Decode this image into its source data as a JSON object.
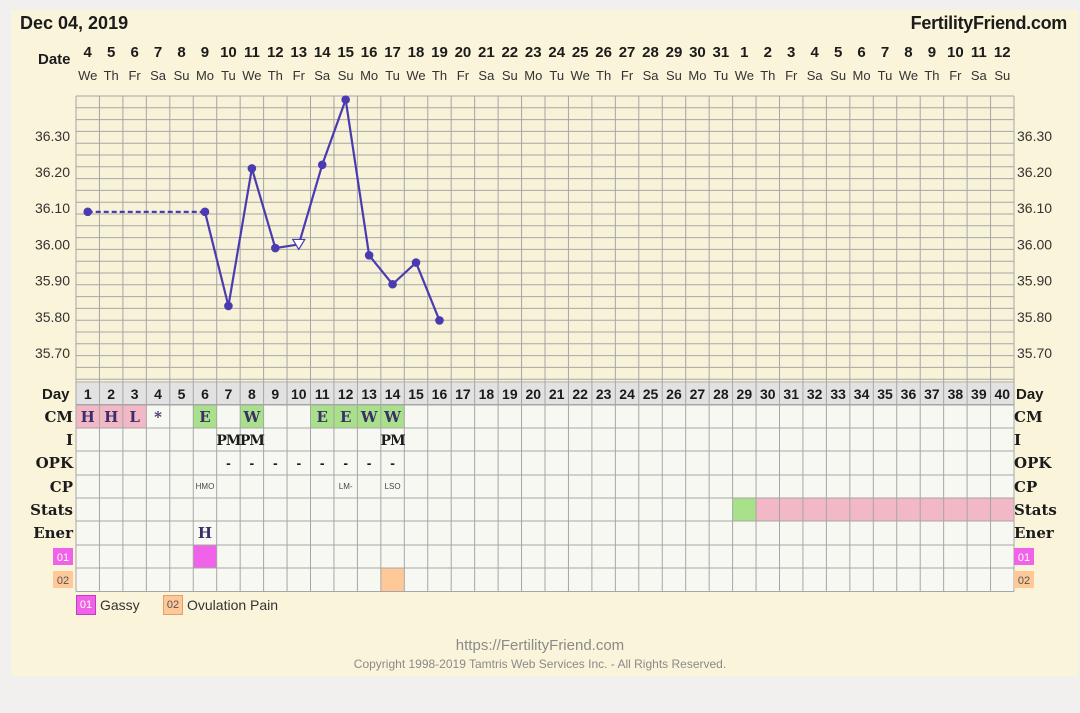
{
  "header": {
    "date": "Dec 04, 2019",
    "brand": "FertilityFriend.com"
  },
  "labels": {
    "date": "Date",
    "day": "Day",
    "rows": [
      "CM",
      "I",
      "OPK",
      "CP",
      "Stats",
      "Ener"
    ],
    "custom_rows": [
      "01",
      "02"
    ]
  },
  "chart_data": {
    "type": "line",
    "title": "",
    "ylabel": "",
    "ylim": [
      35.62,
      36.41
    ],
    "y_ticks": [
      "36.30",
      "36.20",
      "36.10",
      "36.00",
      "35.90",
      "35.80",
      "35.70"
    ],
    "dates": [
      "4",
      "5",
      "6",
      "7",
      "8",
      "9",
      "10",
      "11",
      "12",
      "13",
      "14",
      "15",
      "16",
      "17",
      "18",
      "19",
      "20",
      "21",
      "22",
      "23",
      "24",
      "25",
      "26",
      "27",
      "28",
      "29",
      "30",
      "31",
      "1",
      "2",
      "3",
      "4",
      "5",
      "6",
      "7",
      "8",
      "9",
      "10",
      "11",
      "12"
    ],
    "weekdays": [
      "We",
      "Th",
      "Fr",
      "Sa",
      "Su",
      "Mo",
      "Tu",
      "We",
      "Th",
      "Fr",
      "Sa",
      "Su",
      "Mo",
      "Tu",
      "We",
      "Th",
      "Fr",
      "Sa",
      "Su",
      "Mo",
      "Tu",
      "We",
      "Th",
      "Fr",
      "Sa",
      "Su",
      "Mo",
      "Tu",
      "We",
      "Th",
      "Fr",
      "Sa",
      "Su",
      "Mo",
      "Tu",
      "We",
      "Th",
      "Fr",
      "Sa",
      "Su"
    ],
    "cycle_days": [
      1,
      2,
      3,
      4,
      5,
      6,
      7,
      8,
      9,
      10,
      11,
      12,
      13,
      14,
      15,
      16,
      17,
      18,
      19,
      20,
      21,
      22,
      23,
      24,
      25,
      26,
      27,
      28,
      29,
      30,
      31,
      32,
      33,
      34,
      35,
      36,
      37,
      38,
      39,
      40
    ],
    "series": [
      {
        "points": [
          {
            "day": 1,
            "temp": 36.09
          },
          {
            "day": 6,
            "temp": 36.09
          },
          {
            "day": 7,
            "temp": 35.83
          },
          {
            "day": 8,
            "temp": 36.21
          },
          {
            "day": 9,
            "temp": 35.99
          },
          {
            "day": 10,
            "temp": 36.0,
            "open": true
          },
          {
            "day": 11,
            "temp": 36.22
          },
          {
            "day": 12,
            "temp": 36.4
          },
          {
            "day": 13,
            "temp": 35.97
          },
          {
            "day": 14,
            "temp": 35.89
          },
          {
            "day": 15,
            "temp": 35.95
          },
          {
            "day": 16,
            "temp": 35.79
          }
        ],
        "dashed_segments": [
          [
            1,
            6
          ]
        ],
        "color": "#4b3bb0"
      }
    ],
    "grid": true,
    "observations": {
      "CM": [
        {
          "day": 1,
          "text": "H",
          "color": "#f2b8c6"
        },
        {
          "day": 2,
          "text": "H",
          "color": "#f2b8c6"
        },
        {
          "day": 3,
          "text": "L",
          "color": "#f2b8c6"
        },
        {
          "day": 4,
          "text": "*",
          "color": ""
        },
        {
          "day": 6,
          "text": "E",
          "color": "#a9e08a"
        },
        {
          "day": 8,
          "text": "W",
          "color": "#a9e08a"
        },
        {
          "day": 11,
          "text": "E",
          "color": "#a9e08a"
        },
        {
          "day": 12,
          "text": "E",
          "color": "#a9e08a"
        },
        {
          "day": 13,
          "text": "W",
          "color": "#a9e08a"
        },
        {
          "day": 14,
          "text": "W",
          "color": "#a9e08a"
        }
      ],
      "I": [
        {
          "day": 7,
          "text": "PM"
        },
        {
          "day": 8,
          "text": "PM"
        },
        {
          "day": 14,
          "text": "PM"
        }
      ],
      "OPK": [
        {
          "day": 7,
          "text": "-"
        },
        {
          "day": 8,
          "text": "-"
        },
        {
          "day": 9,
          "text": "-"
        },
        {
          "day": 10,
          "text": "-"
        },
        {
          "day": 11,
          "text": "-"
        },
        {
          "day": 12,
          "text": "-"
        },
        {
          "day": 13,
          "text": "-"
        },
        {
          "day": 14,
          "text": "-"
        }
      ],
      "CP": [
        {
          "day": 6,
          "text": "HMO"
        },
        {
          "day": 12,
          "text": "LM-"
        },
        {
          "day": 14,
          "text": "LSO"
        }
      ],
      "Stats": [
        {
          "day": 29,
          "color": "#a9e08a"
        },
        {
          "from": 30,
          "to": 40,
          "color": "#f2b8c6"
        }
      ],
      "Ener": [
        {
          "day": 6,
          "text": "H"
        }
      ],
      "custom_01": [
        {
          "day": 6,
          "color": "#f062e8"
        }
      ],
      "custom_02": [
        {
          "day": 14,
          "color": "#ffc898"
        }
      ]
    }
  },
  "legend": [
    {
      "code": "01",
      "label": "Gassy",
      "color": "#f062e8"
    },
    {
      "code": "02",
      "label": "Ovulation Pain",
      "color": "#ffc898"
    }
  ],
  "colors": {
    "line": "#4b3bb0",
    "grid": "#a6a6a6",
    "bg": "#faf4da",
    "cell_bg": "#f8f8f3"
  },
  "footer": {
    "url": "https://FertilityFriend.com",
    "copyright": "Copyright 1998-2019 Tamtris Web Services Inc. - All Rights Reserved."
  }
}
